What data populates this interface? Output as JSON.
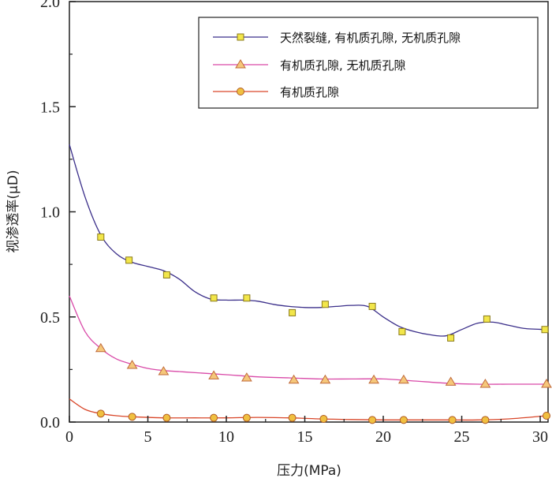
{
  "chart_data": {
    "type": "line",
    "xlabel": "压力(MPa)",
    "ylabel": "视渗透率(μD)",
    "xlim": [
      0,
      30.5
    ],
    "ylim": [
      0,
      2.0
    ],
    "xticks": [
      0,
      5,
      10,
      15,
      20,
      25,
      30
    ],
    "yticks": [
      0.0,
      0.5,
      1.0,
      1.5,
      2.0
    ],
    "xtick_labels": [
      "0",
      "5",
      "10",
      "15",
      "20",
      "25",
      "30"
    ],
    "ytick_labels": [
      "0.0",
      "0.5",
      "1.0",
      "1.5",
      "2.0"
    ],
    "grid": false,
    "legend_position": "top-right",
    "series": [
      {
        "name": "天然裂缝, 有机质孔隙, 无机质孔隙",
        "marker": "square",
        "line_color": "#3b2f8a",
        "marker_fill": "#f2e64a",
        "marker_stroke": "#8a7a1a",
        "x": [
          2.0,
          3.8,
          6.2,
          9.2,
          11.3,
          14.2,
          16.3,
          19.3,
          21.2,
          24.3,
          26.6,
          30.3
        ],
        "y": [
          0.88,
          0.77,
          0.7,
          0.59,
          0.59,
          0.52,
          0.56,
          0.55,
          0.43,
          0.4,
          0.49,
          0.44
        ],
        "curve_x": [
          0,
          1,
          2,
          3,
          4,
          5,
          6,
          7,
          8,
          9,
          10,
          11,
          12,
          13,
          14,
          15,
          16,
          17,
          18,
          19,
          20,
          21,
          22,
          23,
          24,
          25,
          26,
          27,
          28,
          29,
          30.3
        ],
        "curve_y": [
          1.32,
          1.07,
          0.89,
          0.8,
          0.76,
          0.74,
          0.72,
          0.68,
          0.62,
          0.585,
          0.58,
          0.58,
          0.575,
          0.56,
          0.55,
          0.545,
          0.545,
          0.55,
          0.555,
          0.55,
          0.5,
          0.455,
          0.43,
          0.415,
          0.41,
          0.44,
          0.47,
          0.475,
          0.46,
          0.445,
          0.44
        ]
      },
      {
        "name": "有机质孔隙, 无机质孔隙",
        "marker": "triangle",
        "line_color": "#d94aa8",
        "marker_fill": "#f5c77a",
        "marker_stroke": "#c06a3a",
        "x": [
          2.0,
          4.0,
          6.0,
          9.2,
          11.3,
          14.3,
          16.3,
          19.4,
          21.3,
          24.3,
          26.5,
          30.4
        ],
        "y": [
          0.35,
          0.27,
          0.24,
          0.22,
          0.21,
          0.2,
          0.2,
          0.2,
          0.2,
          0.19,
          0.18,
          0.18
        ],
        "curve_x": [
          0,
          1,
          2,
          3,
          4,
          5,
          6,
          7,
          8,
          10,
          12,
          14,
          16,
          18,
          20,
          22,
          24,
          26,
          28,
          30.4
        ],
        "curve_y": [
          0.6,
          0.43,
          0.35,
          0.3,
          0.275,
          0.255,
          0.245,
          0.24,
          0.235,
          0.225,
          0.215,
          0.21,
          0.205,
          0.205,
          0.205,
          0.195,
          0.185,
          0.18,
          0.18,
          0.18
        ]
      },
      {
        "name": "有机质孔隙",
        "marker": "circle",
        "line_color": "#d9472a",
        "marker_fill": "#f0c040",
        "marker_stroke": "#b05a20",
        "x": [
          2.0,
          4.0,
          6.2,
          9.2,
          11.3,
          14.2,
          16.2,
          19.3,
          21.3,
          24.4,
          26.5,
          30.4
        ],
        "y": [
          0.04,
          0.025,
          0.02,
          0.02,
          0.02,
          0.02,
          0.015,
          0.01,
          0.01,
          0.01,
          0.01,
          0.03
        ],
        "curve_x": [
          0,
          1,
          2,
          3,
          4,
          6,
          8,
          10,
          12,
          14,
          16,
          18,
          20,
          22,
          24,
          26,
          28,
          30.4
        ],
        "curve_y": [
          0.11,
          0.06,
          0.04,
          0.03,
          0.025,
          0.02,
          0.02,
          0.02,
          0.022,
          0.02,
          0.015,
          0.012,
          0.01,
          0.01,
          0.01,
          0.01,
          0.015,
          0.03
        ]
      }
    ]
  }
}
